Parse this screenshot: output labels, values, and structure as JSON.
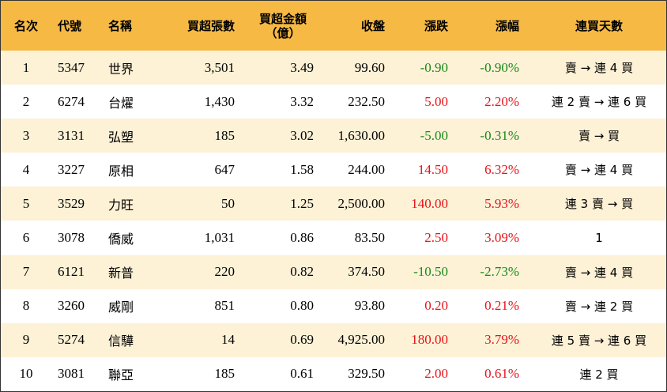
{
  "headers": {
    "rank": "名次",
    "code": "代號",
    "name": "名稱",
    "volume": "買超張數",
    "amount_line1": "買超金額",
    "amount_line2": "（億）",
    "close": "收盤",
    "change": "漲跌",
    "pct": "漲幅",
    "streak": "連買天數"
  },
  "colors": {
    "header_bg": "#f5b944",
    "odd_row_bg": "#fdf1d6",
    "up": "#e8141b",
    "down": "#1a8a1a"
  },
  "rows": [
    {
      "rank": "1",
      "code": "5347",
      "name": "世界",
      "volume": "3,501",
      "amount": "3.49",
      "close": "99.60",
      "change": "-0.90",
      "pct": "-0.90%",
      "dir": "down",
      "streak": "賣 → 連 4 買"
    },
    {
      "rank": "2",
      "code": "6274",
      "name": "台燿",
      "volume": "1,430",
      "amount": "3.32",
      "close": "232.50",
      "change": "5.00",
      "pct": "2.20%",
      "dir": "up",
      "streak": "連 2 賣 → 連 6 買"
    },
    {
      "rank": "3",
      "code": "3131",
      "name": "弘塑",
      "volume": "185",
      "amount": "3.02",
      "close": "1,630.00",
      "change": "-5.00",
      "pct": "-0.31%",
      "dir": "down",
      "streak": "賣 → 買"
    },
    {
      "rank": "4",
      "code": "3227",
      "name": "原相",
      "volume": "647",
      "amount": "1.58",
      "close": "244.00",
      "change": "14.50",
      "pct": "6.32%",
      "dir": "up",
      "streak": "賣 → 連 4 買"
    },
    {
      "rank": "5",
      "code": "3529",
      "name": "力旺",
      "volume": "50",
      "amount": "1.25",
      "close": "2,500.00",
      "change": "140.00",
      "pct": "5.93%",
      "dir": "up",
      "streak": "連 3 賣 → 買"
    },
    {
      "rank": "6",
      "code": "3078",
      "name": "僑威",
      "volume": "1,031",
      "amount": "0.86",
      "close": "83.50",
      "change": "2.50",
      "pct": "3.09%",
      "dir": "up",
      "streak": "1"
    },
    {
      "rank": "7",
      "code": "6121",
      "name": "新普",
      "volume": "220",
      "amount": "0.82",
      "close": "374.50",
      "change": "-10.50",
      "pct": "-2.73%",
      "dir": "down",
      "streak": "賣 → 連 4 買"
    },
    {
      "rank": "8",
      "code": "3260",
      "name": "威剛",
      "volume": "851",
      "amount": "0.80",
      "close": "93.80",
      "change": "0.20",
      "pct": "0.21%",
      "dir": "up",
      "streak": "賣 → 連 2 買"
    },
    {
      "rank": "9",
      "code": "5274",
      "name": "信驊",
      "volume": "14",
      "amount": "0.69",
      "close": "4,925.00",
      "change": "180.00",
      "pct": "3.79%",
      "dir": "up",
      "streak": "連 5 賣 → 連 6 買"
    },
    {
      "rank": "10",
      "code": "3081",
      "name": "聯亞",
      "volume": "185",
      "amount": "0.61",
      "close": "329.50",
      "change": "2.00",
      "pct": "0.61%",
      "dir": "up",
      "streak": "連 2 買"
    }
  ]
}
